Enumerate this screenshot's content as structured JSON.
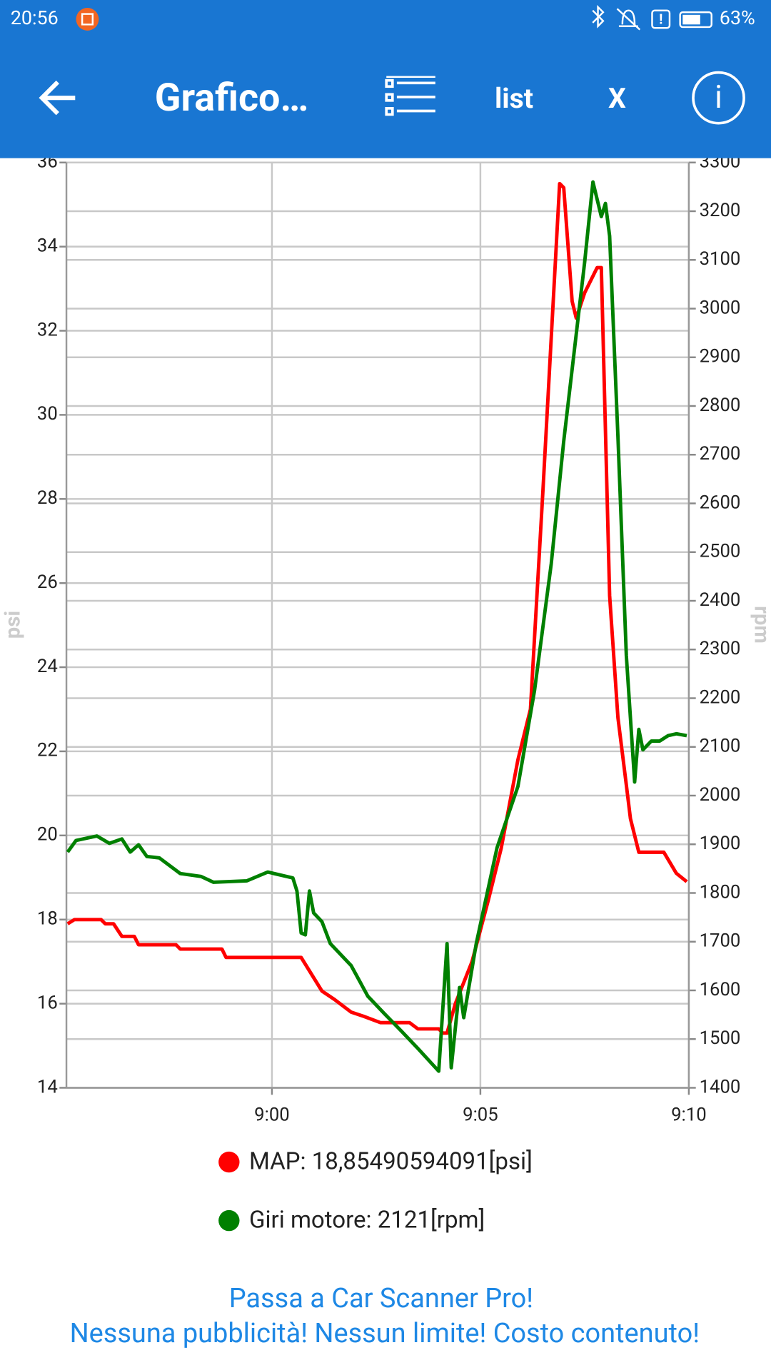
{
  "status_bar": {
    "time": "20:56",
    "battery": "63%"
  },
  "app_bar": {
    "title": "Grafico…",
    "list_button": "list",
    "close_button": "X"
  },
  "chart_data": {
    "type": "line",
    "y_label": "psi",
    "y2_label": "rpm",
    "xlim": [
      535.07,
      550
    ],
    "xticks": [
      {
        "value": 540,
        "label": "9:00"
      },
      {
        "value": 545,
        "label": "9:05"
      },
      {
        "value": 550,
        "label": "9:10"
      }
    ],
    "ylim": [
      14,
      36
    ],
    "yticks": [
      14,
      16,
      18,
      20,
      22,
      24,
      26,
      28,
      30,
      32,
      34,
      36
    ],
    "y2lim": [
      1400,
      3300
    ],
    "y2ticks": [
      1400,
      1500,
      1600,
      1700,
      1800,
      1900,
      2000,
      2100,
      2200,
      2300,
      2400,
      2500,
      2600,
      2700,
      2800,
      2900,
      3000,
      3100,
      3200,
      3300
    ],
    "grid": true,
    "series": [
      {
        "name": "MAP: 18,85490594091[psi]",
        "color": "#ff0000",
        "x": [
          535.1,
          535.26,
          535.9,
          536.0,
          536.2,
          536.4,
          536.7,
          536.8,
          537.7,
          537.8,
          538.8,
          538.9,
          540.7,
          541.2,
          541.5,
          541.9,
          542.2,
          542.6,
          543.3,
          543.5,
          544.0,
          544.1,
          544.2,
          544.4,
          544.8,
          545.2,
          545.5,
          545.9,
          546.2,
          546.5,
          546.9,
          547.0,
          547.2,
          547.3,
          547.5,
          547.8,
          547.9,
          548.1,
          548.3,
          548.5,
          548.6,
          548.8,
          549.4,
          549.7,
          549.95
        ],
        "values": [
          17.9,
          18.0,
          18.0,
          17.9,
          17.9,
          17.6,
          17.6,
          17.4,
          17.4,
          17.3,
          17.3,
          17.1,
          17.1,
          16.3,
          16.1,
          15.8,
          15.7,
          15.55,
          15.55,
          15.4,
          15.4,
          15.3,
          15.3,
          16.0,
          17.0,
          18.5,
          19.7,
          21.8,
          23.0,
          28.2,
          35.5,
          35.4,
          32.7,
          32.3,
          32.9,
          33.5,
          33.5,
          25.7,
          22.8,
          21.2,
          20.4,
          19.6,
          19.6,
          19.1,
          18.9
        ]
      },
      {
        "name": "Giri motore: 2121[rpm]",
        "color": "#008000",
        "axis": "y2",
        "x": [
          535.1,
          535.3,
          535.8,
          536.1,
          536.4,
          536.6,
          536.8,
          537.0,
          537.3,
          537.8,
          538.3,
          538.6,
          539.4,
          539.9,
          540.5,
          540.6,
          540.7,
          540.8,
          540.9,
          541.0,
          541.2,
          541.4,
          541.9,
          542.3,
          542.7,
          543.1,
          543.5,
          544.0,
          544.2,
          544.3,
          544.5,
          544.6,
          544.9,
          545.4,
          545.9,
          546.3,
          546.7,
          547.0,
          547.5,
          547.7,
          547.9,
          548.0,
          548.1,
          548.3,
          548.5,
          548.7,
          548.8,
          548.9,
          549.1,
          549.3,
          549.5,
          549.7,
          549.95
        ],
        "values": [
          1884,
          1908,
          1917,
          1902,
          1911,
          1884,
          1899,
          1875,
          1872,
          1840,
          1834,
          1822,
          1825,
          1843,
          1831,
          1804,
          1718,
          1714,
          1804,
          1759,
          1741,
          1696,
          1651,
          1588,
          1552,
          1517,
          1481,
          1434,
          1696,
          1441,
          1606,
          1544,
          1696,
          1893,
          2019,
          2216,
          2476,
          2728,
          3095,
          3260,
          3189,
          3216,
          3149,
          2737,
          2288,
          2028,
          2136,
          2094,
          2112,
          2112,
          2123,
          2127,
          2123
        ]
      }
    ]
  },
  "promo": [
    "Passa a Car Scanner Pro!",
    "Nessuna pubblicità! Nessun limite! Costo contenuto!"
  ]
}
